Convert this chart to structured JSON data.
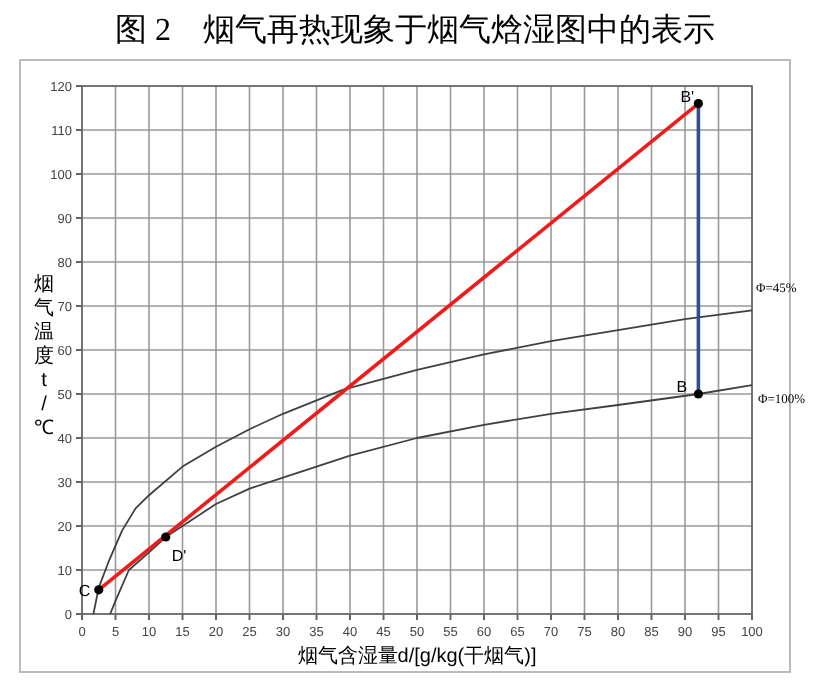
{
  "chart_data": {
    "type": "line",
    "title": "图 2　烟气再热现象于烟气焓湿图中的表示",
    "xlabel": "烟气含湿量d/[g/kg(干烟气)]",
    "ylabel": "烟气温度 t /℃",
    "xlim": [
      0,
      100
    ],
    "ylim": [
      0,
      120
    ],
    "xticks": [
      0,
      5,
      10,
      15,
      20,
      25,
      30,
      35,
      40,
      45,
      50,
      55,
      60,
      65,
      70,
      75,
      80,
      85,
      90,
      95,
      100
    ],
    "yticks": [
      0,
      10,
      20,
      30,
      40,
      50,
      60,
      70,
      80,
      90,
      100,
      110,
      120
    ],
    "grid": true,
    "series": [
      {
        "color": "#404040",
        "x": [
          1.7,
          2.5,
          4,
          6,
          8,
          10,
          15,
          20,
          25,
          30,
          39,
          50,
          60,
          70,
          80,
          90,
          100
        ],
        "values": [
          0,
          6,
          12,
          19,
          24,
          27,
          33.5,
          38,
          42,
          45.5,
          51,
          55.5,
          59,
          62,
          64.5,
          67,
          69
        ]
      },
      {
        "color": "#404040",
        "x": [
          4.2,
          5,
          7,
          10,
          12.5,
          15,
          20,
          25,
          30,
          40,
          50,
          60,
          70,
          80,
          92,
          100
        ],
        "values": [
          0,
          3,
          10,
          14,
          17.5,
          20,
          25,
          28.5,
          31,
          36,
          40,
          43,
          45.5,
          47.5,
          50,
          52
        ]
      },
      {
        "color": "#ee1c1c",
        "x": [
          2.5,
          92
        ],
        "values": [
          5.5,
          116
        ]
      },
      {
        "color": "#2f4f8f",
        "x": [
          92,
          92
        ],
        "values": [
          50,
          116
        ]
      },
      {
        "type": "scatter",
        "marker": "circle",
        "color": "#000000",
        "x": [
          2.5,
          12.5,
          92,
          92
        ],
        "values": [
          5.5,
          17.5,
          50,
          116
        ]
      }
    ],
    "annotations": [
      {
        "text": "C",
        "x": 2.5,
        "y": 5.5
      },
      {
        "text": "D'",
        "x": 12.5,
        "y": 17.5
      },
      {
        "text": "B",
        "x": 92,
        "y": 50
      },
      {
        "text": "B'",
        "x": 92,
        "y": 116
      },
      {
        "text": "Φ=45%",
        "x": 100,
        "y": 69
      },
      {
        "text": "Φ=100%",
        "x": 100,
        "y": 52
      }
    ]
  }
}
